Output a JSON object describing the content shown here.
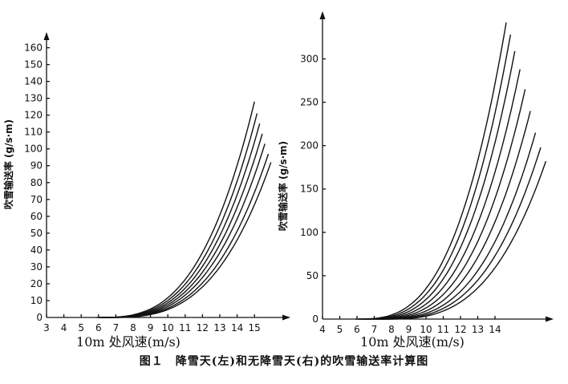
{
  "caption": "图１　降雪天(左)和无降雪天(右)的吹雪输送率计算图",
  "chart_data": [
    {
      "type": "line",
      "title": "降雪天",
      "xlabel": "10m 处风速(m/s)",
      "ylabel": "吹雪输送率 (g/s·m)",
      "xlim": [
        3,
        16.3
      ],
      "ylim": [
        0,
        170
      ],
      "xticks": [
        "3",
        "4",
        "5",
        "6",
        "7",
        "8",
        "9",
        "10",
        "11",
        "12",
        "13",
        "14",
        "15"
      ],
      "yticks": [
        "0",
        "10",
        "20",
        "30",
        "40",
        "50",
        "60",
        "70",
        "80",
        "90",
        "100",
        "110",
        "120",
        "130",
        "140",
        "150",
        "160"
      ],
      "series": [
        {
          "name": "c1",
          "x0": 5.9,
          "x_end": 15.0,
          "y_end": 128
        },
        {
          "name": "c2",
          "x0": 6.0,
          "x_end": 15.15,
          "y_end": 121
        },
        {
          "name": "c3",
          "x0": 6.1,
          "x_end": 15.3,
          "y_end": 115
        },
        {
          "name": "c4",
          "x0": 6.2,
          "x_end": 15.45,
          "y_end": 109
        },
        {
          "name": "c5",
          "x0": 6.3,
          "x_end": 15.6,
          "y_end": 103
        },
        {
          "name": "c6",
          "x0": 6.4,
          "x_end": 15.8,
          "y_end": 97
        },
        {
          "name": "c7",
          "x0": 6.5,
          "x_end": 15.95,
          "y_end": 92
        }
      ]
    },
    {
      "type": "line",
      "title": "无降雪天",
      "xlabel": "10m 处风速(m/s)",
      "ylabel": "吹雪输送率 (g/s·m)",
      "xlim": [
        4,
        17.2
      ],
      "ylim": [
        0,
        345
      ],
      "xticks": [
        "4",
        "5",
        "6",
        "7",
        "8",
        "9",
        "10",
        "11",
        "12",
        "13",
        "14"
      ],
      "yticks": [
        "0",
        "50",
        "100",
        "150",
        "200",
        "250",
        "300"
      ],
      "series": [
        {
          "name": "c1",
          "x0": 5.9,
          "x_end": 14.65,
          "y_end": 342
        },
        {
          "name": "c2",
          "x0": 6.1,
          "x_end": 14.9,
          "y_end": 328
        },
        {
          "name": "c3",
          "x0": 6.3,
          "x_end": 15.15,
          "y_end": 309
        },
        {
          "name": "c4",
          "x0": 6.5,
          "x_end": 15.45,
          "y_end": 288
        },
        {
          "name": "c5",
          "x0": 6.7,
          "x_end": 15.75,
          "y_end": 265
        },
        {
          "name": "c6",
          "x0": 6.9,
          "x_end": 16.05,
          "y_end": 240
        },
        {
          "name": "c7",
          "x0": 7.1,
          "x_end": 16.35,
          "y_end": 215
        },
        {
          "name": "c8",
          "x0": 7.3,
          "x_end": 16.65,
          "y_end": 198
        },
        {
          "name": "c9",
          "x0": 7.5,
          "x_end": 16.95,
          "y_end": 182
        }
      ]
    }
  ]
}
